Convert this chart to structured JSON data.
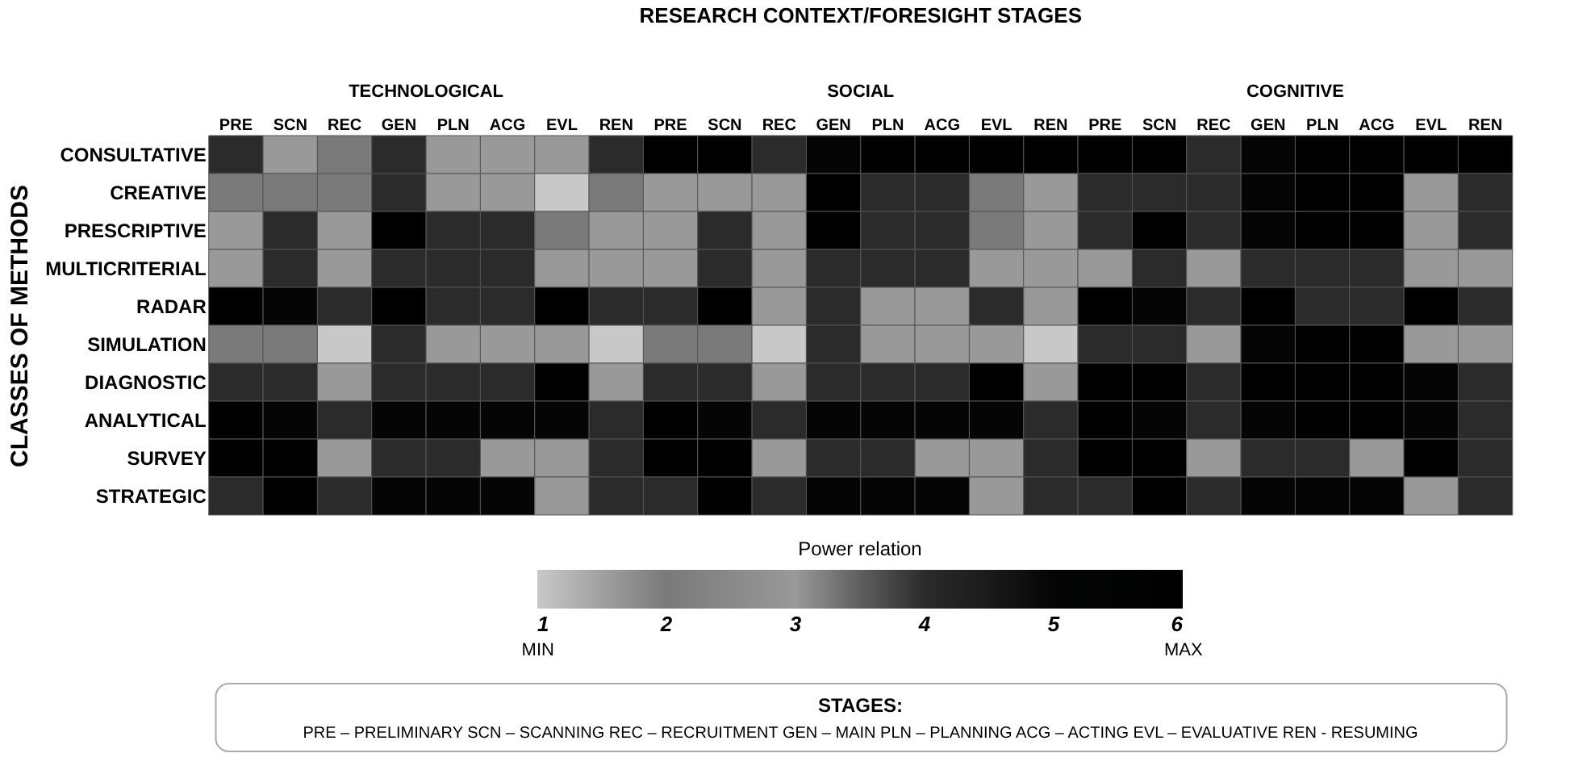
{
  "chart_data": {
    "type": "heatmap",
    "title": "RESEARCH CONTEXT/FORESIGHT STAGES",
    "ylabel": "CLASSES OF METHODS",
    "legend_title": "Power relation",
    "categories": [
      "PRE",
      "SCN",
      "REC",
      "GEN",
      "PLN",
      "ACG",
      "EVL",
      "REN",
      "PRE",
      "SCN",
      "REC",
      "GEN",
      "PLN",
      "ACG",
      "EVL",
      "REN",
      "PRE",
      "SCN",
      "REC",
      "GEN",
      "PLN",
      "ACG",
      "EVL",
      "REN"
    ],
    "y_categories": [
      "CONSULTATIVE",
      "CREATIVE",
      "PRESCRIPTIVE",
      "MULTICRITERIAL",
      "RADAR",
      "SIMULATION",
      "DIAGNOSTIC",
      "ANALYTICAL",
      "SURVEY",
      "STRATEGIC"
    ],
    "cells": [
      [
        4,
        3,
        2,
        4,
        3,
        3,
        3,
        4,
        6,
        6,
        4,
        5,
        6,
        6,
        6,
        6,
        6,
        6,
        4,
        5,
        6,
        6,
        6,
        6
      ],
      [
        2,
        2,
        2,
        4,
        3,
        3,
        1,
        2,
        3,
        3,
        3,
        6,
        4,
        4,
        2,
        3,
        4,
        4,
        4,
        5,
        6,
        6,
        3,
        4
      ],
      [
        3,
        4,
        3,
        6,
        4,
        4,
        2,
        3,
        3,
        4,
        3,
        6,
        4,
        4,
        2,
        3,
        4,
        6,
        4,
        5,
        6,
        6,
        3,
        4
      ],
      [
        3,
        4,
        3,
        4,
        4,
        4,
        3,
        3,
        3,
        4,
        3,
        4,
        4,
        4,
        3,
        3,
        3,
        4,
        3,
        4,
        4,
        4,
        3,
        3
      ],
      [
        6,
        5,
        4,
        6,
        4,
        4,
        6,
        4,
        4,
        6,
        3,
        4,
        3,
        3,
        4,
        3,
        6,
        5,
        4,
        6,
        4,
        4,
        6,
        4
      ],
      [
        2,
        2,
        1,
        4,
        3,
        3,
        3,
        1,
        2,
        2,
        1,
        4,
        3,
        3,
        3,
        1,
        4,
        4,
        3,
        5,
        6,
        6,
        3,
        3
      ],
      [
        4,
        4,
        3,
        4,
        4,
        4,
        6,
        3,
        4,
        4,
        3,
        4,
        4,
        4,
        6,
        3,
        6,
        6,
        4,
        6,
        6,
        6,
        5,
        4
      ],
      [
        6,
        5,
        4,
        5,
        5,
        5,
        5,
        4,
        6,
        5,
        4,
        5,
        5,
        5,
        5,
        4,
        6,
        5,
        4,
        5,
        6,
        6,
        5,
        4
      ],
      [
        6,
        6,
        3,
        4,
        4,
        3,
        3,
        4,
        6,
        6,
        3,
        4,
        4,
        3,
        3,
        4,
        6,
        6,
        3,
        4,
        4,
        3,
        6,
        4
      ],
      [
        4,
        6,
        4,
        5,
        5,
        5,
        3,
        4,
        4,
        6,
        4,
        5,
        5,
        5,
        3,
        4,
        4,
        6,
        4,
        5,
        5,
        5,
        3,
        4
      ]
    ],
    "clim": [
      1,
      6
    ],
    "cticks": [
      1,
      2,
      3,
      4,
      5,
      6
    ],
    "colors": [
      "#c8c8c8",
      "#7a7a7a",
      "#999999",
      "#2b2b2b",
      "#050505",
      "#000000"
    ],
    "annotations": [
      "TECHNOLOGICAL",
      "SOCIAL",
      "COGNITIVE",
      "MIN",
      "MAX",
      "STAGES:",
      "PRE – PRELIMINARY SCN – SCANNING REC – RECRUITMENT GEN – MAIN PLN – PLANNING ACG – ACTING EVL – EVALUATIVE REN - RESUMING"
    ]
  }
}
